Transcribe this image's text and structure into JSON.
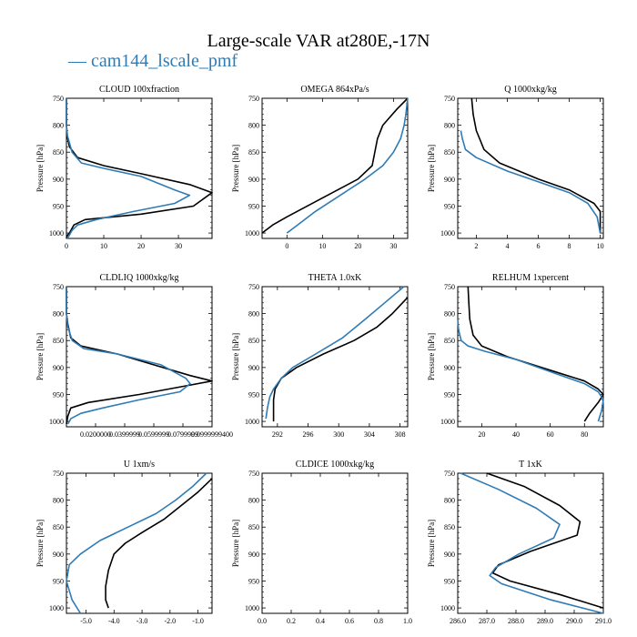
{
  "title": "Large-scale VAR at280E,-17N",
  "legend": {
    "label": "cam144_lscale_pmf",
    "line_color": "#2e7bb5"
  },
  "colors": {
    "ref": "#000000",
    "model": "#2e7bb5"
  },
  "chart_data": [
    {
      "type": "line",
      "title": "CLOUD  100xfraction",
      "ylabel": "Pressure [hPa]",
      "ylim": [
        1010,
        750
      ],
      "xlim": [
        0,
        39
      ],
      "xticks": [
        0,
        10,
        20,
        30
      ],
      "xticklabels": [
        "0",
        "10",
        "20",
        "30"
      ],
      "yticks": [
        750,
        800,
        850,
        900,
        950,
        1000
      ],
      "series": [
        {
          "role": "ref",
          "x": [
            0,
            0,
            0.2,
            0.8,
            3,
            10,
            20,
            33,
            39,
            34,
            20,
            5,
            2,
            0.8,
            0.2,
            0
          ],
          "y": [
            750,
            800,
            820,
            840,
            860,
            875,
            890,
            910,
            925,
            950,
            965,
            975,
            985,
            1000,
            1005,
            1010
          ]
        },
        {
          "role": "model",
          "x": [
            0,
            0,
            0.3,
            1.5,
            4,
            10,
            20,
            29,
            33,
            29,
            18,
            8,
            3,
            1.5,
            0.7,
            0.2
          ],
          "y": [
            750,
            800,
            820,
            850,
            870,
            880,
            895,
            920,
            930,
            945,
            960,
            975,
            985,
            995,
            1005,
            1010
          ]
        }
      ]
    },
    {
      "type": "line",
      "title": "OMEGA  864xPa/s",
      "ylabel": "Pressure [hPa]",
      "ylim": [
        1010,
        750
      ],
      "xlim": [
        -7,
        34
      ],
      "xticks": [
        0,
        10,
        20,
        30
      ],
      "xticklabels": [
        "0",
        "10",
        "20",
        "30"
      ],
      "yticks": [
        750,
        800,
        850,
        900,
        950,
        1000
      ],
      "series": [
        {
          "role": "ref",
          "x": [
            34,
            31,
            27,
            25.5,
            24,
            20,
            10,
            0,
            -4,
            -7
          ],
          "y": [
            750,
            770,
            800,
            825,
            875,
            900,
            935,
            970,
            985,
            1000
          ]
        },
        {
          "role": "model",
          "x": [
            34,
            33.5,
            33,
            32,
            30,
            27,
            22,
            15,
            8,
            3,
            0
          ],
          "y": [
            750,
            780,
            800,
            825,
            850,
            875,
            900,
            930,
            960,
            985,
            1000
          ]
        }
      ]
    },
    {
      "type": "line",
      "title": "Q  1000xkg/kg",
      "ylabel": "Pressure [hPa]",
      "ylim": [
        1010,
        750
      ],
      "xlim": [
        0.8,
        10.2
      ],
      "xticks": [
        2,
        4,
        6,
        8,
        10
      ],
      "xticklabels": [
        "2",
        "4",
        "6",
        "8",
        "10"
      ],
      "yticks": [
        750,
        800,
        850,
        900,
        950,
        1000
      ],
      "series": [
        {
          "role": "ref",
          "x": [
            1.7,
            1.8,
            2,
            2.5,
            3.5,
            6,
            8,
            9.6,
            10,
            10
          ],
          "y": [
            750,
            780,
            810,
            845,
            870,
            900,
            920,
            945,
            960,
            1000
          ]
        },
        {
          "role": "model",
          "x": [
            1,
            1.1,
            1.3,
            2,
            4,
            6,
            8,
            9.2,
            9.8,
            10
          ],
          "y": [
            810,
            825,
            845,
            860,
            885,
            905,
            925,
            945,
            970,
            1000
          ]
        }
      ]
    },
    {
      "type": "line",
      "title": "CLDLIQ  1000xkg/kg",
      "ylabel": "Pressure [hPa]",
      "ylim": [
        1010,
        750
      ],
      "xlim": [
        0,
        0.1
      ],
      "xticks": [
        0.02,
        0.04,
        0.06,
        0.08,
        0.1
      ],
      "xticklabels": [
        "0.0200000",
        "0.0399999",
        "0.0599999",
        "0.0799999",
        "0.0999999400"
      ],
      "yticks": [
        750,
        800,
        850,
        900,
        950,
        1000
      ],
      "series": [
        {
          "role": "ref",
          "x": [
            0,
            0,
            0.001,
            0.003,
            0.01,
            0.035,
            0.06,
            0.085,
            0.1,
            0.08,
            0.05,
            0.015,
            0.003,
            0.001,
            0
          ],
          "y": [
            750,
            800,
            820,
            845,
            860,
            875,
            895,
            915,
            925,
            935,
            950,
            965,
            975,
            990,
            1005
          ]
        },
        {
          "role": "model",
          "x": [
            0,
            0,
            0.001,
            0.004,
            0.012,
            0.035,
            0.065,
            0.082,
            0.085,
            0.078,
            0.05,
            0.025,
            0.01,
            0.003,
            0.001
          ],
          "y": [
            750,
            800,
            825,
            850,
            865,
            875,
            895,
            920,
            930,
            945,
            960,
            975,
            985,
            995,
            1005
          ]
        }
      ]
    },
    {
      "type": "line",
      "title": "THETA  1.0xK",
      "ylabel": "Pressure [hPa]",
      "ylim": [
        1010,
        750
      ],
      "xlim": [
        290,
        309
      ],
      "xticks": [
        292,
        296,
        300,
        304,
        308
      ],
      "xticklabels": [
        "292",
        "296",
        "300",
        "304",
        "308"
      ],
      "yticks": [
        750,
        800,
        850,
        900,
        950,
        1000
      ],
      "series": [
        {
          "role": "ref",
          "x": [
            309,
            307,
            305,
            302,
            298,
            294.5,
            292.5,
            291.7,
            291.5,
            291.5,
            291.5
          ],
          "y": [
            770,
            800,
            825,
            850,
            875,
            900,
            920,
            940,
            960,
            980,
            1000
          ]
        },
        {
          "role": "model",
          "x": [
            308.5,
            306,
            303.5,
            300.5,
            297,
            294,
            292.5,
            291.5,
            291,
            290.7,
            290.5
          ],
          "y": [
            750,
            780,
            810,
            845,
            875,
            900,
            920,
            940,
            955,
            975,
            995
          ]
        }
      ]
    },
    {
      "type": "line",
      "title": "RELHUM  1xpercent",
      "ylabel": "Pressure [hPa]",
      "ylim": [
        1010,
        750
      ],
      "xlim": [
        6,
        91
      ],
      "xticks": [
        20,
        40,
        60,
        80
      ],
      "xticklabels": [
        "20",
        "40",
        "60",
        "80"
      ],
      "yticks": [
        750,
        800,
        850,
        900,
        950,
        1000
      ],
      "series": [
        {
          "role": "ref",
          "x": [
            12,
            12.5,
            13,
            15,
            20,
            35,
            60,
            80,
            88,
            91,
            88,
            83,
            80
          ],
          "y": [
            750,
            780,
            810,
            840,
            860,
            880,
            905,
            925,
            940,
            950,
            965,
            985,
            1000
          ]
        },
        {
          "role": "model",
          "x": [
            6,
            6.5,
            8,
            12,
            22,
            40,
            62,
            80,
            88,
            91,
            90,
            88
          ],
          "y": [
            810,
            830,
            850,
            860,
            870,
            885,
            910,
            930,
            945,
            960,
            980,
            1000
          ]
        }
      ]
    },
    {
      "type": "line",
      "title": "U  1xm/s",
      "ylabel": "Pressure [hPa]",
      "ylim": [
        1010,
        750
      ],
      "xlim": [
        -5.7,
        -0.5
      ],
      "xticks": [
        -5,
        -4,
        -3,
        -2,
        -1
      ],
      "xticklabels": [
        "-5.0",
        "-4.0",
        "-3.0",
        "-2.0",
        "-1.0"
      ],
      "yticks": [
        750,
        800,
        850,
        900,
        950,
        1000
      ],
      "series": [
        {
          "role": "ref",
          "x": [
            -0.5,
            -1,
            -1.6,
            -2.2,
            -3,
            -3.6,
            -4,
            -4.2,
            -4.3,
            -4.3,
            -4.2
          ],
          "y": [
            760,
            785,
            810,
            835,
            860,
            880,
            900,
            930,
            960,
            985,
            1000
          ]
        },
        {
          "role": "model",
          "x": [
            -0.7,
            -1.2,
            -1.8,
            -2.5,
            -3.5,
            -4.5,
            -5.2,
            -5.6,
            -5.7,
            -5.5,
            -5.2
          ],
          "y": [
            750,
            775,
            800,
            825,
            850,
            875,
            900,
            920,
            950,
            985,
            1010
          ]
        }
      ]
    },
    {
      "type": "line",
      "title": "CLDICE  1000xkg/kg",
      "ylabel": "Pressure [hPa]",
      "ylim": [
        1010,
        750
      ],
      "xlim": [
        0,
        1
      ],
      "xticks": [
        0,
        0.2,
        0.4,
        0.6,
        0.8,
        1
      ],
      "xticklabels": [
        "0.0",
        "0.2",
        "0.4",
        "0.6",
        "0.8",
        "1.0"
      ],
      "yticks": [
        750,
        800,
        850,
        900,
        950,
        1000
      ],
      "series": []
    },
    {
      "type": "line",
      "title": "T  1xK",
      "ylabel": "Pressure [hPa]",
      "ylim": [
        1010,
        750
      ],
      "xlim": [
        286,
        291
      ],
      "xticks": [
        286,
        287,
        288,
        289,
        290,
        291
      ],
      "xticklabels": [
        "286.0",
        "287.0",
        "288.0",
        "289.0",
        "290.0",
        "291.0"
      ],
      "yticks": [
        750,
        800,
        850,
        900,
        950,
        1000
      ],
      "series": [
        {
          "role": "ref",
          "x": [
            287,
            288.3,
            289.5,
            290.2,
            290.1,
            288.5,
            287.4,
            287.2,
            287.8,
            289.5,
            291
          ],
          "y": [
            750,
            775,
            810,
            840,
            865,
            895,
            920,
            935,
            950,
            975,
            1000
          ]
        },
        {
          "role": "model",
          "x": [
            286.1,
            287.4,
            288.7,
            289.5,
            289.3,
            288.1,
            287.3,
            287.1,
            287.5,
            289.2,
            291
          ],
          "y": [
            750,
            780,
            815,
            845,
            870,
            900,
            925,
            940,
            955,
            985,
            1010
          ]
        }
      ]
    }
  ]
}
